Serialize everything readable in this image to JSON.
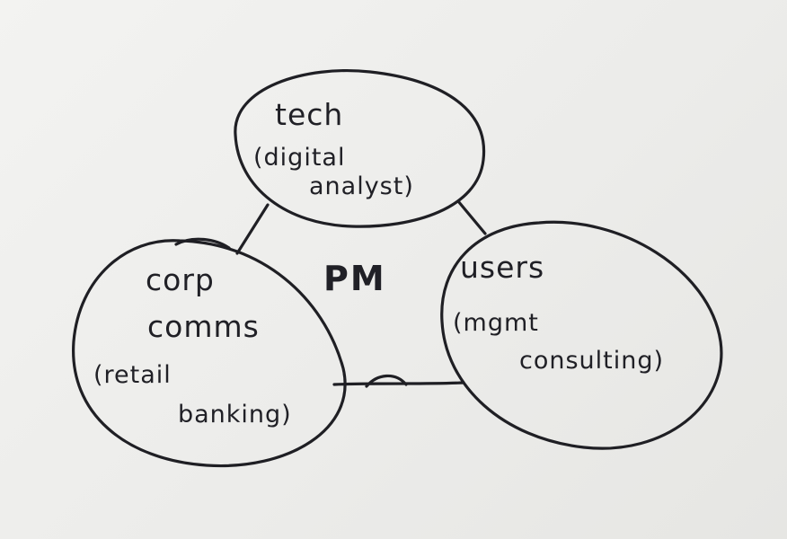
{
  "center_label": "PM",
  "nodes": {
    "tech": {
      "title": "tech",
      "line1": "(digital",
      "line2": "analyst)"
    },
    "corp": {
      "title_line1": "corp",
      "title_line2": "comms",
      "line1": "(retail",
      "line2": "banking)"
    },
    "users": {
      "title": "users",
      "line1": "(mgmt",
      "line2": "consulting)"
    }
  },
  "colors": {
    "ink": "#1f1f24",
    "paper": "#efefed"
  }
}
